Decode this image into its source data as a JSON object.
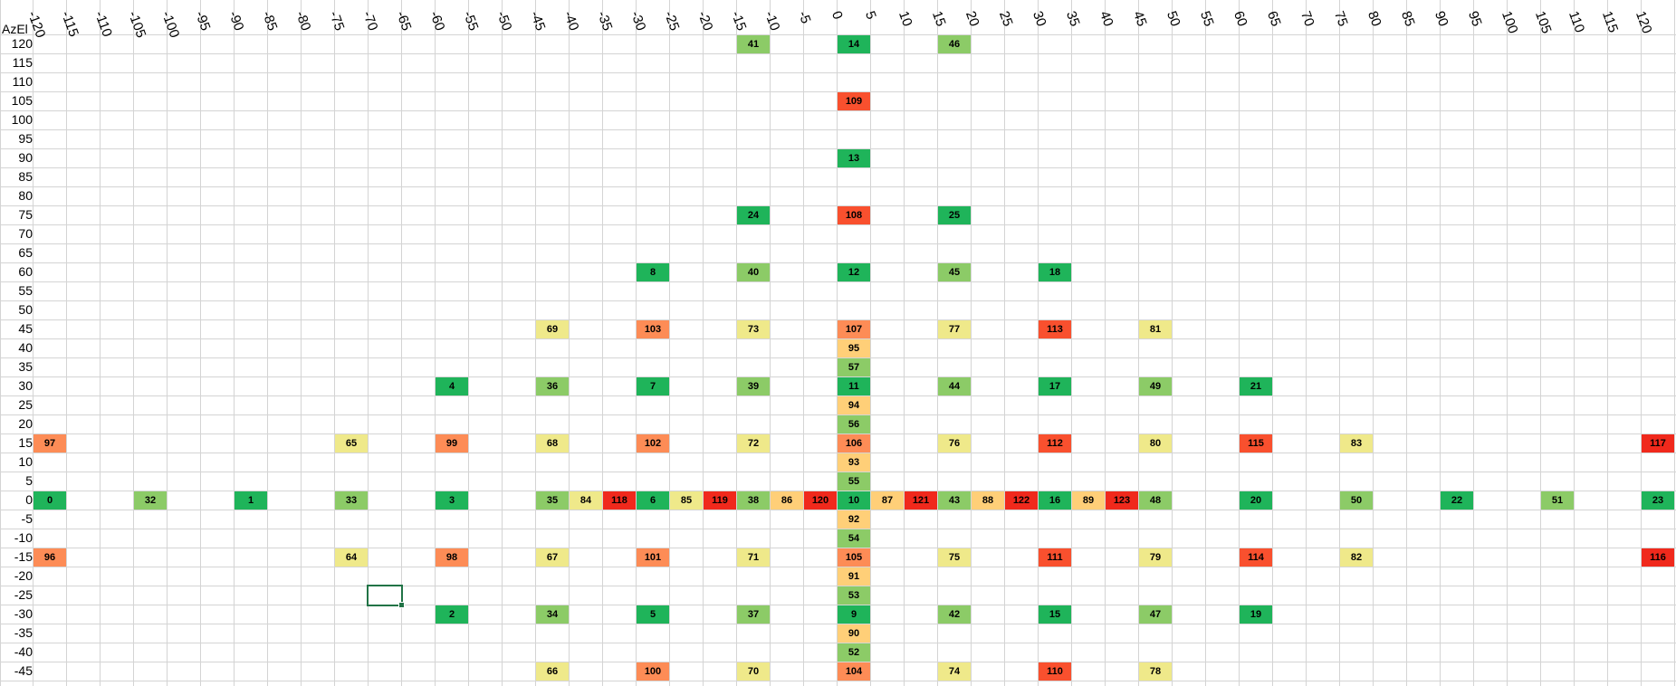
{
  "sheet": {
    "corner_label": "AzEl",
    "columns": [
      "-120",
      "-115",
      "-110",
      "-105",
      "-100",
      "-95",
      "-90",
      "-85",
      "-80",
      "-75",
      "-70",
      "-65",
      "-60",
      "-55",
      "-50",
      "-45",
      "-40",
      "-35",
      "-30",
      "-25",
      "-20",
      "-15",
      "-10",
      "-5",
      "0",
      "5",
      "10",
      "15",
      "20",
      "25",
      "30",
      "35",
      "40",
      "45",
      "50",
      "55",
      "60",
      "65",
      "70",
      "75",
      "80",
      "85",
      "90",
      "95",
      "100",
      "105",
      "110",
      "115",
      "120"
    ],
    "rows": [
      "120",
      "115",
      "110",
      "105",
      "100",
      "95",
      "90",
      "85",
      "80",
      "75",
      "70",
      "65",
      "60",
      "55",
      "50",
      "45",
      "40",
      "35",
      "30",
      "25",
      "20",
      "15",
      "10",
      "5",
      "0",
      "-5",
      "-10",
      "-15",
      "-20",
      "-25",
      "-30",
      "-35",
      "-40",
      "-45"
    ],
    "colors": {
      "g": "#1fb45a",
      "lg": "#8ccb67",
      "y": "#efe98a",
      "lo": "#ffcf78",
      "o": "#fd8c56",
      "r": "#f9502e",
      "dr": "#f0291c"
    },
    "cells": [
      {
        "r": 0,
        "c": 21,
        "v": "41",
        "k": "lg"
      },
      {
        "r": 0,
        "c": 24,
        "v": "14",
        "k": "g"
      },
      {
        "r": 0,
        "c": 27,
        "v": "46",
        "k": "lg"
      },
      {
        "r": 3,
        "c": 24,
        "v": "109",
        "k": "r"
      },
      {
        "r": 6,
        "c": 24,
        "v": "13",
        "k": "g"
      },
      {
        "r": 9,
        "c": 21,
        "v": "24",
        "k": "g"
      },
      {
        "r": 9,
        "c": 24,
        "v": "108",
        "k": "r"
      },
      {
        "r": 9,
        "c": 27,
        "v": "25",
        "k": "g"
      },
      {
        "r": 12,
        "c": 18,
        "v": "8",
        "k": "g"
      },
      {
        "r": 12,
        "c": 21,
        "v": "40",
        "k": "lg"
      },
      {
        "r": 12,
        "c": 24,
        "v": "12",
        "k": "g"
      },
      {
        "r": 12,
        "c": 27,
        "v": "45",
        "k": "lg"
      },
      {
        "r": 12,
        "c": 30,
        "v": "18",
        "k": "g"
      },
      {
        "r": 15,
        "c": 15,
        "v": "69",
        "k": "y"
      },
      {
        "r": 15,
        "c": 18,
        "v": "103",
        "k": "o"
      },
      {
        "r": 15,
        "c": 21,
        "v": "73",
        "k": "y"
      },
      {
        "r": 15,
        "c": 24,
        "v": "107",
        "k": "o"
      },
      {
        "r": 15,
        "c": 27,
        "v": "77",
        "k": "y"
      },
      {
        "r": 15,
        "c": 30,
        "v": "113",
        "k": "r"
      },
      {
        "r": 15,
        "c": 33,
        "v": "81",
        "k": "y"
      },
      {
        "r": 16,
        "c": 24,
        "v": "95",
        "k": "lo"
      },
      {
        "r": 17,
        "c": 24,
        "v": "57",
        "k": "lg"
      },
      {
        "r": 18,
        "c": 12,
        "v": "4",
        "k": "g"
      },
      {
        "r": 18,
        "c": 15,
        "v": "36",
        "k": "lg"
      },
      {
        "r": 18,
        "c": 18,
        "v": "7",
        "k": "g"
      },
      {
        "r": 18,
        "c": 21,
        "v": "39",
        "k": "lg"
      },
      {
        "r": 18,
        "c": 24,
        "v": "11",
        "k": "g"
      },
      {
        "r": 18,
        "c": 27,
        "v": "44",
        "k": "lg"
      },
      {
        "r": 18,
        "c": 30,
        "v": "17",
        "k": "g"
      },
      {
        "r": 18,
        "c": 33,
        "v": "49",
        "k": "lg"
      },
      {
        "r": 18,
        "c": 36,
        "v": "21",
        "k": "g"
      },
      {
        "r": 19,
        "c": 24,
        "v": "94",
        "k": "lo"
      },
      {
        "r": 20,
        "c": 24,
        "v": "56",
        "k": "lg"
      },
      {
        "r": 21,
        "c": 0,
        "v": "97",
        "k": "o"
      },
      {
        "r": 21,
        "c": 9,
        "v": "65",
        "k": "y"
      },
      {
        "r": 21,
        "c": 12,
        "v": "99",
        "k": "o"
      },
      {
        "r": 21,
        "c": 15,
        "v": "68",
        "k": "y"
      },
      {
        "r": 21,
        "c": 18,
        "v": "102",
        "k": "o"
      },
      {
        "r": 21,
        "c": 21,
        "v": "72",
        "k": "y"
      },
      {
        "r": 21,
        "c": 24,
        "v": "106",
        "k": "o"
      },
      {
        "r": 21,
        "c": 27,
        "v": "76",
        "k": "y"
      },
      {
        "r": 21,
        "c": 30,
        "v": "112",
        "k": "r"
      },
      {
        "r": 21,
        "c": 33,
        "v": "80",
        "k": "y"
      },
      {
        "r": 21,
        "c": 36,
        "v": "115",
        "k": "r"
      },
      {
        "r": 21,
        "c": 39,
        "v": "83",
        "k": "y"
      },
      {
        "r": 21,
        "c": 48,
        "v": "117",
        "k": "dr"
      },
      {
        "r": 22,
        "c": 24,
        "v": "93",
        "k": "lo"
      },
      {
        "r": 23,
        "c": 24,
        "v": "55",
        "k": "lg"
      },
      {
        "r": 24,
        "c": 0,
        "v": "0",
        "k": "g"
      },
      {
        "r": 24,
        "c": 3,
        "v": "32",
        "k": "lg"
      },
      {
        "r": 24,
        "c": 6,
        "v": "1",
        "k": "g"
      },
      {
        "r": 24,
        "c": 9,
        "v": "33",
        "k": "lg"
      },
      {
        "r": 24,
        "c": 12,
        "v": "3",
        "k": "g"
      },
      {
        "r": 24,
        "c": 15,
        "v": "35",
        "k": "lg"
      },
      {
        "r": 24,
        "c": 16,
        "v": "84",
        "k": "y"
      },
      {
        "r": 24,
        "c": 17,
        "v": "118",
        "k": "dr"
      },
      {
        "r": 24,
        "c": 18,
        "v": "6",
        "k": "g"
      },
      {
        "r": 24,
        "c": 19,
        "v": "85",
        "k": "y"
      },
      {
        "r": 24,
        "c": 20,
        "v": "119",
        "k": "dr"
      },
      {
        "r": 24,
        "c": 21,
        "v": "38",
        "k": "lg"
      },
      {
        "r": 24,
        "c": 22,
        "v": "86",
        "k": "lo"
      },
      {
        "r": 24,
        "c": 23,
        "v": "120",
        "k": "dr"
      },
      {
        "r": 24,
        "c": 24,
        "v": "10",
        "k": "g"
      },
      {
        "r": 24,
        "c": 25,
        "v": "87",
        "k": "lo"
      },
      {
        "r": 24,
        "c": 26,
        "v": "121",
        "k": "dr"
      },
      {
        "r": 24,
        "c": 27,
        "v": "43",
        "k": "lg"
      },
      {
        "r": 24,
        "c": 28,
        "v": "88",
        "k": "lo"
      },
      {
        "r": 24,
        "c": 29,
        "v": "122",
        "k": "dr"
      },
      {
        "r": 24,
        "c": 30,
        "v": "16",
        "k": "g"
      },
      {
        "r": 24,
        "c": 31,
        "v": "89",
        "k": "lo"
      },
      {
        "r": 24,
        "c": 32,
        "v": "123",
        "k": "dr"
      },
      {
        "r": 24,
        "c": 33,
        "v": "48",
        "k": "lg"
      },
      {
        "r": 24,
        "c": 36,
        "v": "20",
        "k": "g"
      },
      {
        "r": 24,
        "c": 39,
        "v": "50",
        "k": "lg"
      },
      {
        "r": 24,
        "c": 42,
        "v": "22",
        "k": "g"
      },
      {
        "r": 24,
        "c": 45,
        "v": "51",
        "k": "lg"
      },
      {
        "r": 24,
        "c": 48,
        "v": "23",
        "k": "g"
      },
      {
        "r": 25,
        "c": 24,
        "v": "92",
        "k": "lo"
      },
      {
        "r": 26,
        "c": 24,
        "v": "54",
        "k": "lg"
      },
      {
        "r": 27,
        "c": 0,
        "v": "96",
        "k": "o"
      },
      {
        "r": 27,
        "c": 9,
        "v": "64",
        "k": "y"
      },
      {
        "r": 27,
        "c": 12,
        "v": "98",
        "k": "o"
      },
      {
        "r": 27,
        "c": 15,
        "v": "67",
        "k": "y"
      },
      {
        "r": 27,
        "c": 18,
        "v": "101",
        "k": "o"
      },
      {
        "r": 27,
        "c": 21,
        "v": "71",
        "k": "y"
      },
      {
        "r": 27,
        "c": 24,
        "v": "105",
        "k": "o"
      },
      {
        "r": 27,
        "c": 27,
        "v": "75",
        "k": "y"
      },
      {
        "r": 27,
        "c": 30,
        "v": "111",
        "k": "r"
      },
      {
        "r": 27,
        "c": 33,
        "v": "79",
        "k": "y"
      },
      {
        "r": 27,
        "c": 36,
        "v": "114",
        "k": "r"
      },
      {
        "r": 27,
        "c": 39,
        "v": "82",
        "k": "y"
      },
      {
        "r": 27,
        "c": 48,
        "v": "116",
        "k": "dr"
      },
      {
        "r": 28,
        "c": 24,
        "v": "91",
        "k": "lo"
      },
      {
        "r": 29,
        "c": 24,
        "v": "53",
        "k": "lg"
      },
      {
        "r": 30,
        "c": 12,
        "v": "2",
        "k": "g"
      },
      {
        "r": 30,
        "c": 15,
        "v": "34",
        "k": "lg"
      },
      {
        "r": 30,
        "c": 18,
        "v": "5",
        "k": "g"
      },
      {
        "r": 30,
        "c": 21,
        "v": "37",
        "k": "lg"
      },
      {
        "r": 30,
        "c": 24,
        "v": "9",
        "k": "g"
      },
      {
        "r": 30,
        "c": 27,
        "v": "42",
        "k": "lg"
      },
      {
        "r": 30,
        "c": 30,
        "v": "15",
        "k": "g"
      },
      {
        "r": 30,
        "c": 33,
        "v": "47",
        "k": "lg"
      },
      {
        "r": 30,
        "c": 36,
        "v": "19",
        "k": "g"
      },
      {
        "r": 31,
        "c": 24,
        "v": "90",
        "k": "lo"
      },
      {
        "r": 32,
        "c": 24,
        "v": "52",
        "k": "lg"
      },
      {
        "r": 33,
        "c": 15,
        "v": "66",
        "k": "y"
      },
      {
        "r": 33,
        "c": 18,
        "v": "100",
        "k": "o"
      },
      {
        "r": 33,
        "c": 21,
        "v": "70",
        "k": "y"
      },
      {
        "r": 33,
        "c": 24,
        "v": "104",
        "k": "o"
      },
      {
        "r": 33,
        "c": 27,
        "v": "74",
        "k": "y"
      },
      {
        "r": 33,
        "c": 30,
        "v": "110",
        "k": "r"
      },
      {
        "r": 33,
        "c": 33,
        "v": "78",
        "k": "y"
      }
    ],
    "selected": {
      "r": 29,
      "c": 10
    }
  }
}
